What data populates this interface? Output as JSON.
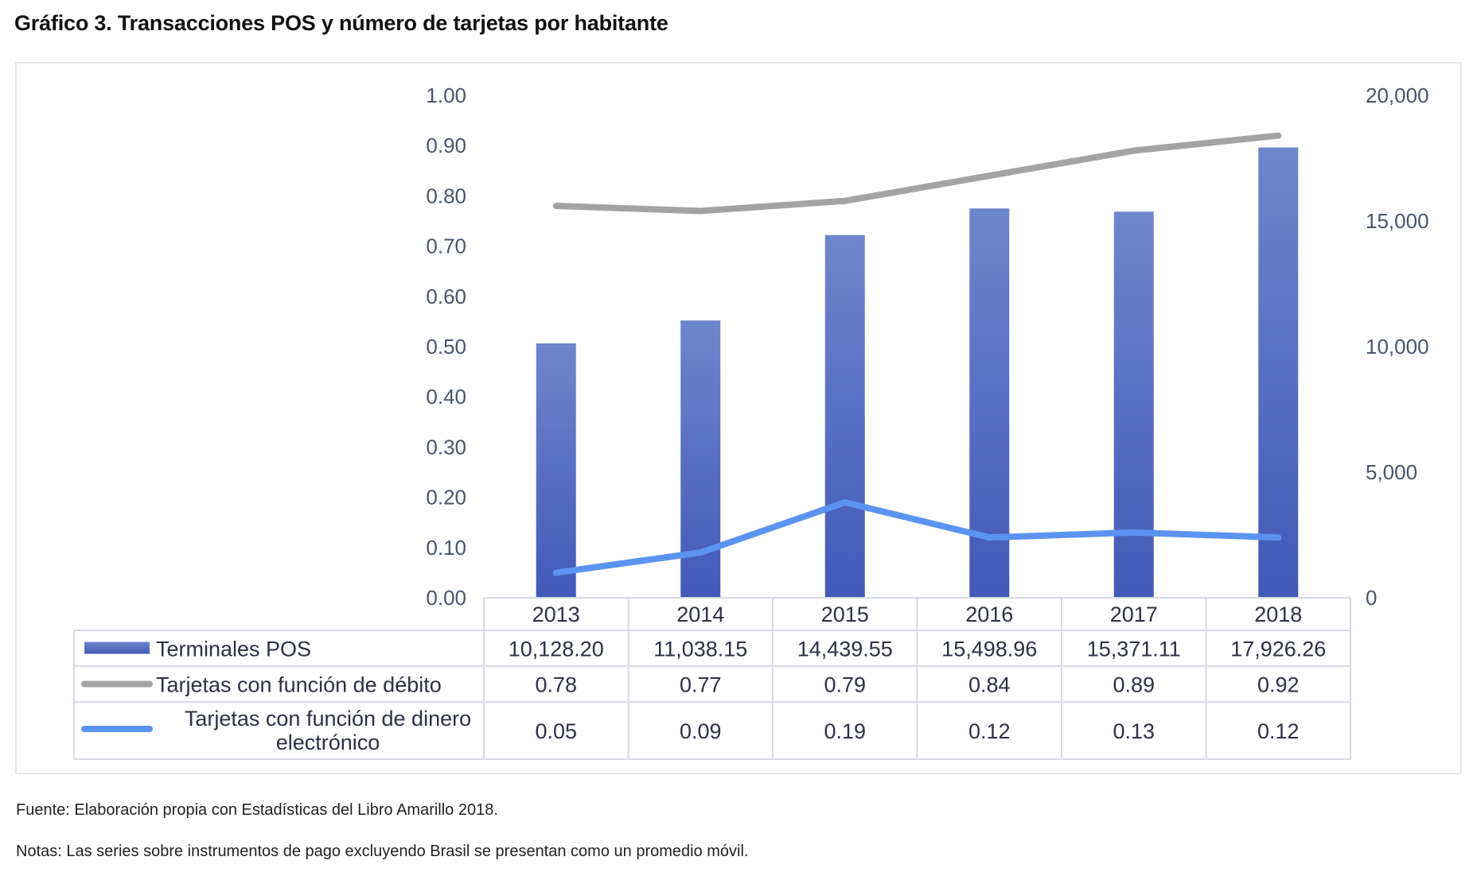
{
  "title": "Gráfico 3. Transacciones POS y número de tarjetas por habitante",
  "source": "Fuente: Elaboración propia con Estadísticas del Libro Amarillo 2018.",
  "notes": "Notas: Las series sobre instrumentos de pago excluyendo Brasil se presentan como un promedio móvil.",
  "chart_data": {
    "type": "bar",
    "categories": [
      "2013",
      "2014",
      "2015",
      "2016",
      "2017",
      "2018"
    ],
    "y_left": {
      "ticks": [
        "0.00",
        "0.10",
        "0.20",
        "0.30",
        "0.40",
        "0.50",
        "0.60",
        "0.70",
        "0.80",
        "0.90",
        "1.00"
      ],
      "range": [
        0,
        1.0
      ]
    },
    "y_right": {
      "ticks": [
        "0",
        "5,000",
        "10,000",
        "15,000",
        "20,000"
      ],
      "range": [
        0,
        20000
      ]
    },
    "grid": false,
    "legend": "data-table",
    "series": [
      {
        "name": "Terminales POS",
        "type": "bar",
        "axis": "right",
        "values": [
          10128.2,
          11038.15,
          14439.55,
          15498.96,
          15371.11,
          17926.26
        ],
        "labels": [
          "10,128.20",
          "11,038.15",
          "14,439.55",
          "15,498.96",
          "15,371.11",
          "17,926.26"
        ],
        "color": "#4a67c4"
      },
      {
        "name": "Tarjetas con función de débito",
        "type": "line",
        "axis": "left",
        "values": [
          0.78,
          0.77,
          0.79,
          0.84,
          0.89,
          0.92
        ],
        "labels": [
          "0.78",
          "0.77",
          "0.79",
          "0.84",
          "0.89",
          "0.92"
        ],
        "color": "#a3a3a3"
      },
      {
        "name": "Tarjetas con función de dinero electrónico",
        "name_lines": [
          "Tarjetas con función de dinero",
          "electrónico"
        ],
        "type": "line",
        "axis": "left",
        "values": [
          0.05,
          0.09,
          0.19,
          0.12,
          0.13,
          0.12
        ],
        "labels": [
          "0.05",
          "0.09",
          "0.19",
          "0.12",
          "0.13",
          "0.12"
        ],
        "color": "#5b93f0"
      }
    ]
  }
}
